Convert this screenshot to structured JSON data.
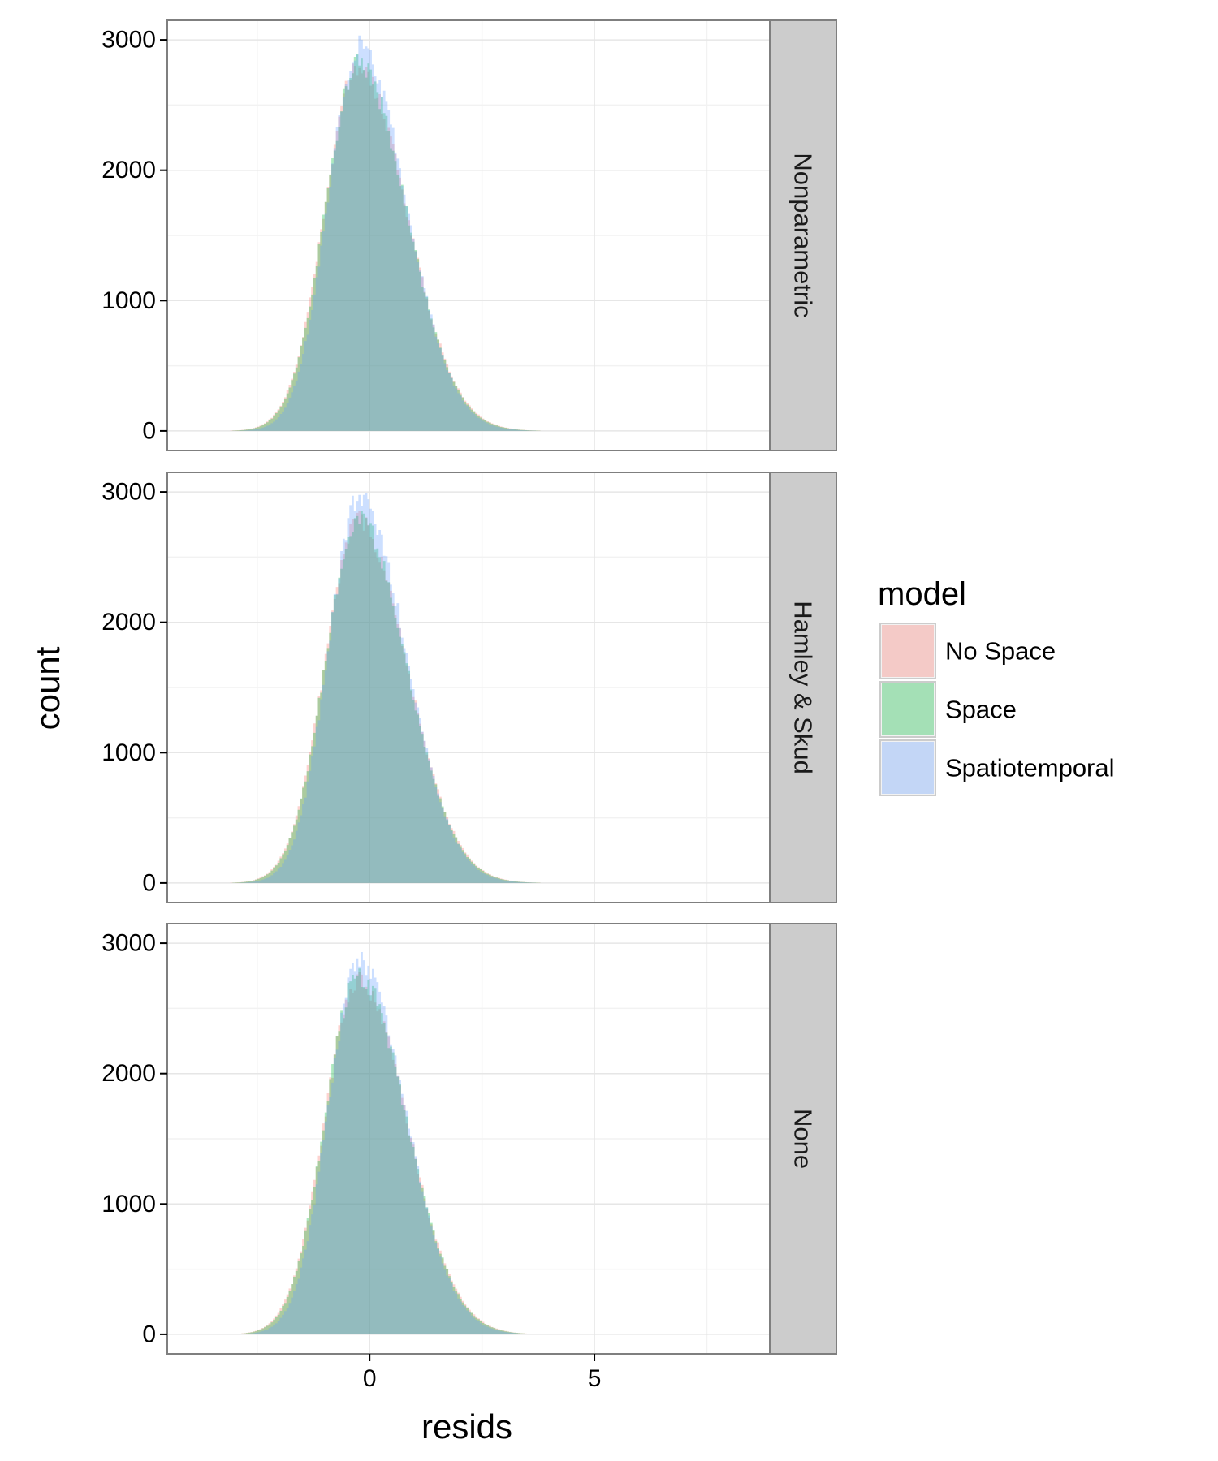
{
  "chart_data": {
    "type": "histogram",
    "xlabel": "resids",
    "ylabel": "count",
    "xlim": [
      -4.5,
      8.9
    ],
    "ylim": [
      -150,
      3150
    ],
    "x_ticks": [
      0,
      5
    ],
    "y_ticks": [
      0,
      1000,
      2000,
      3000
    ],
    "bin_width": 0.05,
    "grid": true,
    "legend": {
      "title": "model",
      "position": "right",
      "entries": [
        {
          "name": "No Space",
          "color": "#F8766D"
        },
        {
          "name": "Space",
          "color": "#00BA38"
        },
        {
          "name": "Spatiotemporal",
          "color": "#619CFF"
        }
      ]
    },
    "facets": [
      {
        "label": "Nonparametric",
        "series": [
          {
            "name": "No Space",
            "mode": -0.25,
            "peak": 2790,
            "left_sd": 0.75,
            "right_sd": 1.07
          },
          {
            "name": "Space",
            "mode": -0.25,
            "peak": 2810,
            "left_sd": 0.74,
            "right_sd": 1.06
          },
          {
            "name": "Spatiotemporal",
            "mode": -0.22,
            "peak": 2950,
            "left_sd": 0.7,
            "right_sd": 1.02
          }
        ]
      },
      {
        "label": "Hamley & Skud",
        "series": [
          {
            "name": "No Space",
            "mode": -0.25,
            "peak": 2780,
            "left_sd": 0.75,
            "right_sd": 1.07
          },
          {
            "name": "Space",
            "mode": -0.25,
            "peak": 2800,
            "left_sd": 0.74,
            "right_sd": 1.06
          },
          {
            "name": "Spatiotemporal",
            "mode": -0.22,
            "peak": 2960,
            "left_sd": 0.7,
            "right_sd": 1.02
          }
        ]
      },
      {
        "label": "None",
        "series": [
          {
            "name": "No Space",
            "mode": -0.25,
            "peak": 2720,
            "left_sd": 0.75,
            "right_sd": 1.07
          },
          {
            "name": "Space",
            "mode": -0.25,
            "peak": 2750,
            "left_sd": 0.74,
            "right_sd": 1.06
          },
          {
            "name": "Spatiotemporal",
            "mode": -0.22,
            "peak": 2850,
            "left_sd": 0.7,
            "right_sd": 1.02
          }
        ]
      }
    ]
  }
}
